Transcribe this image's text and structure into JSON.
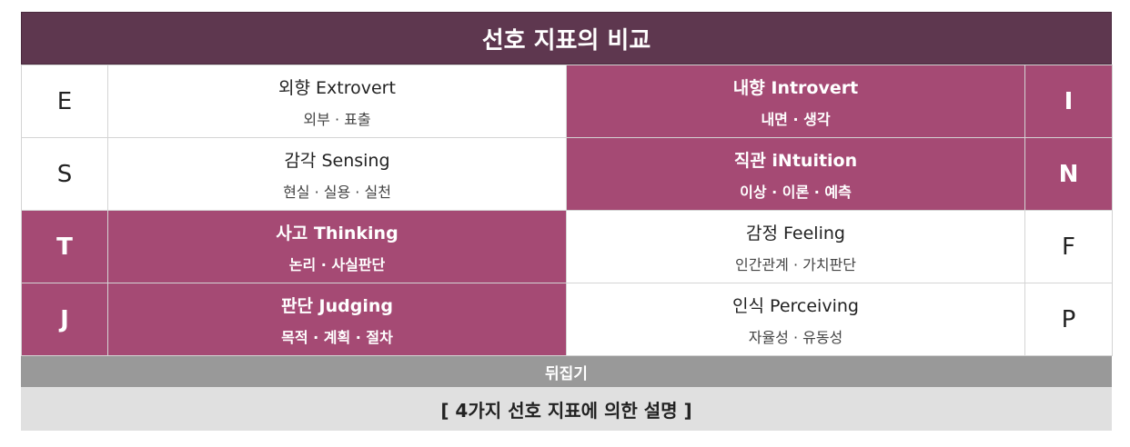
{
  "title": "선호 지표의 비교",
  "rows": [
    {
      "left_letter": "E",
      "right_letter": "I",
      "left_main": "외향 Extrovert",
      "left_sub": "외부 · 표출",
      "right_main": "내향 Introvert",
      "right_sub": "내면 · 생각",
      "selected": "right"
    },
    {
      "left_letter": "S",
      "right_letter": "N",
      "left_main": "감각 Sensing",
      "left_sub": "현실 · 실용 · 실천",
      "right_main": "직관 iNtuition",
      "right_sub": "이상 · 이론 · 예측",
      "selected": "right"
    },
    {
      "left_letter": "T",
      "right_letter": "F",
      "left_main": "사고 Thinking",
      "left_sub": "논리 · 사실판단",
      "right_main": "감정 Feeling",
      "right_sub": "인간관계 · 가치판단",
      "selected": "left"
    },
    {
      "left_letter": "J",
      "right_letter": "P",
      "left_main": "판단 Judging",
      "left_sub": "목적 · 계획 · 절차",
      "right_main": "인식 Perceiving",
      "right_sub": "자율성 · 유동성",
      "selected": "left"
    }
  ],
  "flip_button": "뒤집기",
  "caption": "[ 4가지 선호 지표에 의한 설명 ]",
  "colors": {
    "header_bg": "#5e374f",
    "selected_bg": "#a54a74",
    "flip_bg": "#999999",
    "caption_bg": "#e0e0e0"
  }
}
